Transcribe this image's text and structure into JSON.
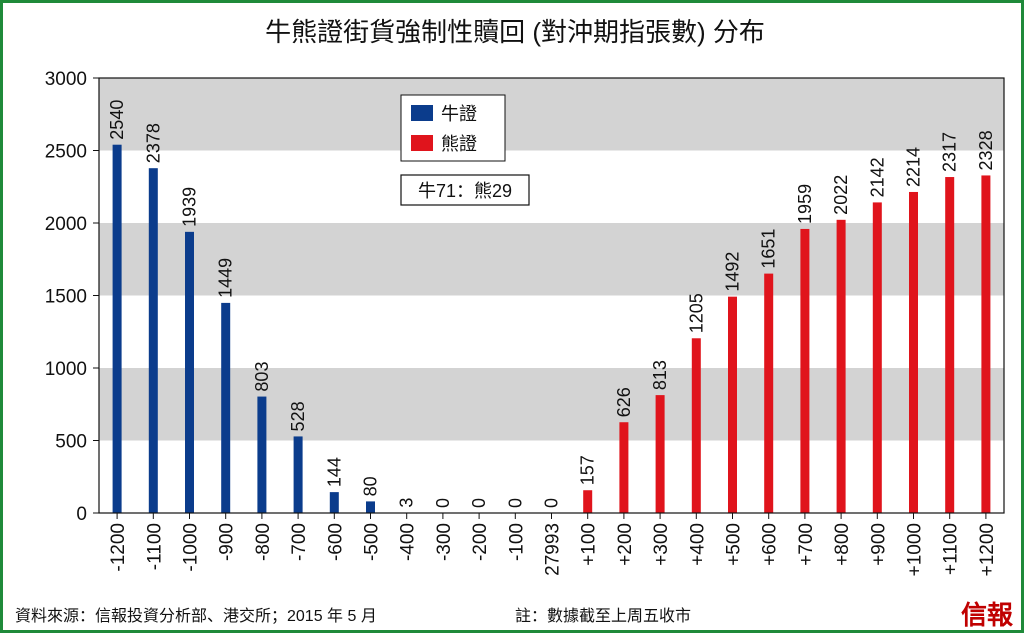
{
  "chart_data": {
    "type": "bar",
    "title": "牛熊證街貨強制性贖回 (對沖期指張數) 分布",
    "categories": [
      "-1200",
      "-1100",
      "-1000",
      "-900",
      "-800",
      "-700",
      "-600",
      "-500",
      "-400",
      "-300",
      "-200",
      "-100",
      "27993",
      "+100",
      "+200",
      "+300",
      "+400",
      "+500",
      "+600",
      "+700",
      "+800",
      "+900",
      "+1000",
      "+1100",
      "+1200"
    ],
    "values": [
      2540,
      2378,
      1939,
      1449,
      803,
      528,
      144,
      80,
      3,
      0,
      0,
      0,
      0,
      157,
      626,
      813,
      1205,
      1492,
      1651,
      1959,
      2022,
      2142,
      2214,
      2317,
      2328
    ],
    "bar_series": [
      "bull",
      "bull",
      "bull",
      "bull",
      "bull",
      "bull",
      "bull",
      "bull",
      "bull",
      "bull",
      "bull",
      "bull",
      "bull",
      "bear",
      "bear",
      "bear",
      "bear",
      "bear",
      "bear",
      "bear",
      "bear",
      "bear",
      "bear",
      "bear",
      "bear"
    ],
    "series": [
      {
        "name": "牛證",
        "color": "#0b3c8c"
      },
      {
        "name": "熊證",
        "color": "#e0141c"
      }
    ],
    "ylim": [
      0,
      3000
    ],
    "yticks": [
      0,
      500,
      1000,
      1500,
      2000,
      2500,
      3000
    ],
    "grid": "alternating horizontal bands",
    "legend_position": "top-center",
    "ratio_annotation": "牛71：熊29",
    "band_color": "#d3d3d3"
  },
  "footer": {
    "source": "資料來源：信報投資分析部、港交所；2015 年 5 月",
    "note": "註：數據截至上周五收市",
    "brand": "信報"
  }
}
